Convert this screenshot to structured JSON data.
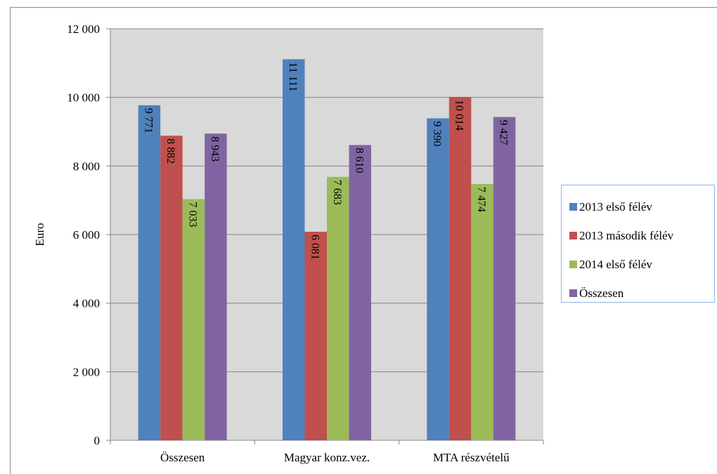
{
  "chart_data": {
    "type": "bar",
    "ylabel": "Euro",
    "ylim": [
      0,
      12000
    ],
    "yticks": [
      0,
      2000,
      4000,
      6000,
      8000,
      10000,
      12000
    ],
    "ytick_labels": [
      "0",
      "2 000",
      "4 000",
      "6 000",
      "8 000",
      "10 000",
      "12 000"
    ],
    "categories": [
      "Összesen",
      "Magyar konz.vez.",
      "MTA részvételű"
    ],
    "grid": true,
    "legend_position": "right",
    "plot_background": "#d9d9d9",
    "series": [
      {
        "name": "2013 első félév",
        "color": "#4f81bd",
        "values": [
          9771,
          11111,
          9390
        ],
        "labels": [
          "9 771",
          "11 111",
          "9 390"
        ]
      },
      {
        "name": "2013 második félév",
        "color": "#c0504d",
        "values": [
          8882,
          6081,
          10014
        ],
        "labels": [
          "8 882",
          "6 081",
          "10 014"
        ]
      },
      {
        "name": "2014 első félév",
        "color": "#9bbb59",
        "values": [
          7033,
          7683,
          7474
        ],
        "labels": [
          "7 033",
          "7 683",
          "7 474"
        ]
      },
      {
        "name": "Összesen",
        "color": "#8064a2",
        "values": [
          8943,
          8610,
          9427
        ],
        "labels": [
          "8 943",
          "8 610",
          "9 427"
        ]
      }
    ]
  }
}
